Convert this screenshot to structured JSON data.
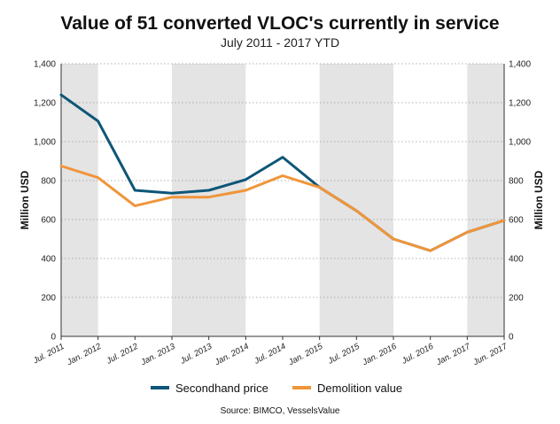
{
  "chart_data": {
    "type": "line",
    "title": "Value of 51 converted VLOC's currently in service",
    "subtitle": "July 2011 - 2017 YTD",
    "ylabel": "Million USD",
    "ylabel_right": "Million USD",
    "ylim": [
      0,
      1400
    ],
    "yticks": [
      0,
      200,
      400,
      600,
      800,
      1000,
      1200,
      1400
    ],
    "ytick_labels": [
      "0",
      "200",
      "400",
      "600",
      "800",
      "1,000",
      "1,200",
      "1,400"
    ],
    "categories": [
      "Jul. 2011",
      "Jan. 2012",
      "Jul. 2012",
      "Jan. 2013",
      "Jul. 2013",
      "Jan. 2014",
      "Jul. 2014",
      "Jan. 2015",
      "Jul. 2015",
      "Jan. 2016",
      "Jul. 2016",
      "Jan. 2017",
      "Jun. 2017"
    ],
    "shaded_bands": [
      [
        0,
        1
      ],
      [
        3,
        5
      ],
      [
        7,
        9
      ],
      [
        11,
        12
      ]
    ],
    "grid": "horizontal dotted",
    "legend_position": "bottom",
    "series": [
      {
        "name": "Secondhand price",
        "color": "#0d5677",
        "values": [
          1240,
          1105,
          750,
          735,
          750,
          805,
          920,
          765,
          645,
          500,
          440,
          535,
          595
        ]
      },
      {
        "name": "Demolition value",
        "color": "#f0953a",
        "values": [
          875,
          815,
          670,
          715,
          715,
          750,
          825,
          765,
          645,
          500,
          440,
          535,
          595
        ]
      }
    ],
    "source": "Source: BIMCO, VesselsValue"
  }
}
